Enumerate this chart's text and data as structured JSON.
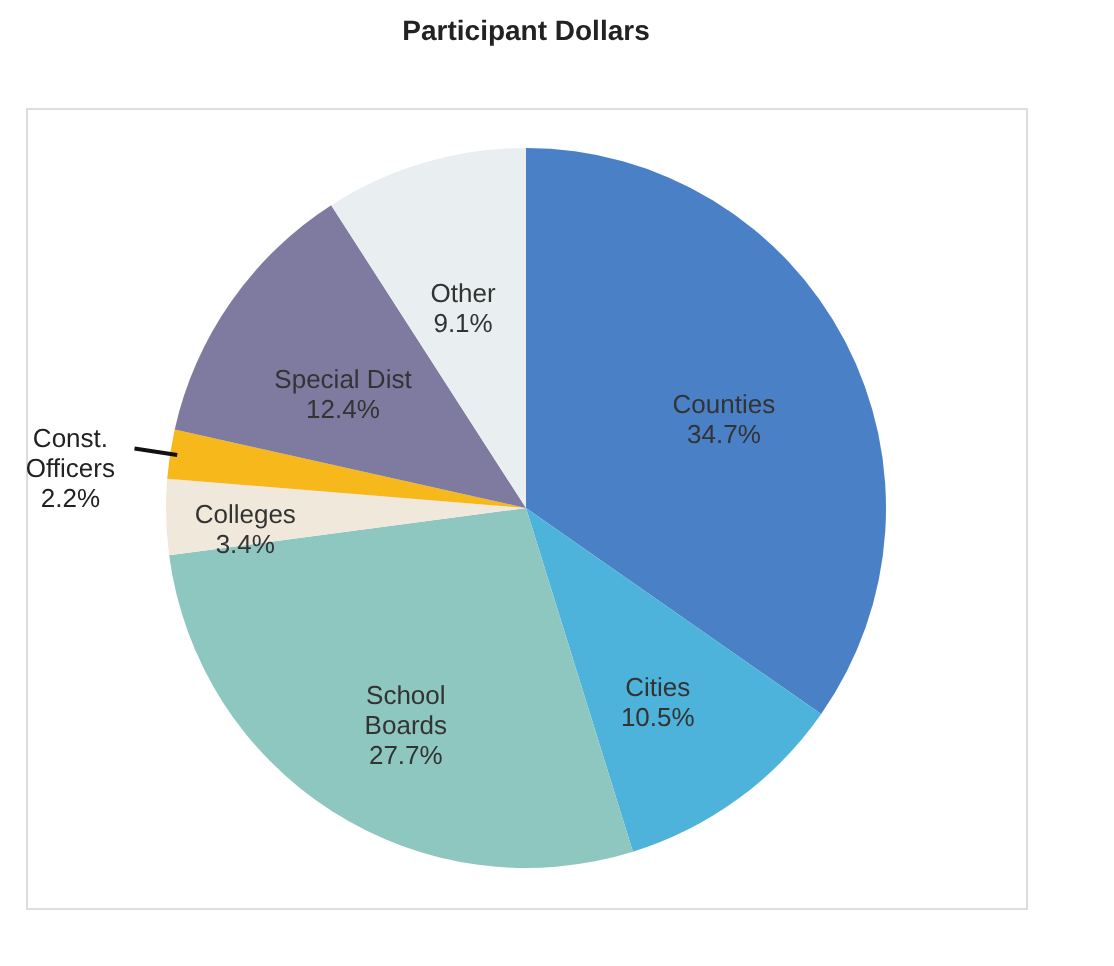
{
  "chart_data": {
    "type": "pie",
    "title": "Participant Dollars",
    "categories": [
      "Counties",
      "Cities",
      "School Boards",
      "Colleges",
      "Const. Officers",
      "Special Dist",
      "Other"
    ],
    "values": [
      34.7,
      10.5,
      27.7,
      3.4,
      2.2,
      12.4,
      9.1
    ],
    "value_labels": [
      "34.7%",
      "10.5%",
      "27.7%",
      "3.4%",
      "2.2%",
      "12.4%",
      "9.1%"
    ],
    "colors": [
      "#4a80c6",
      "#4db3da",
      "#8ec7bf",
      "#f1e8dc",
      "#f6b81a",
      "#7f7ba0",
      "#e9eff0"
    ],
    "legend": false
  }
}
